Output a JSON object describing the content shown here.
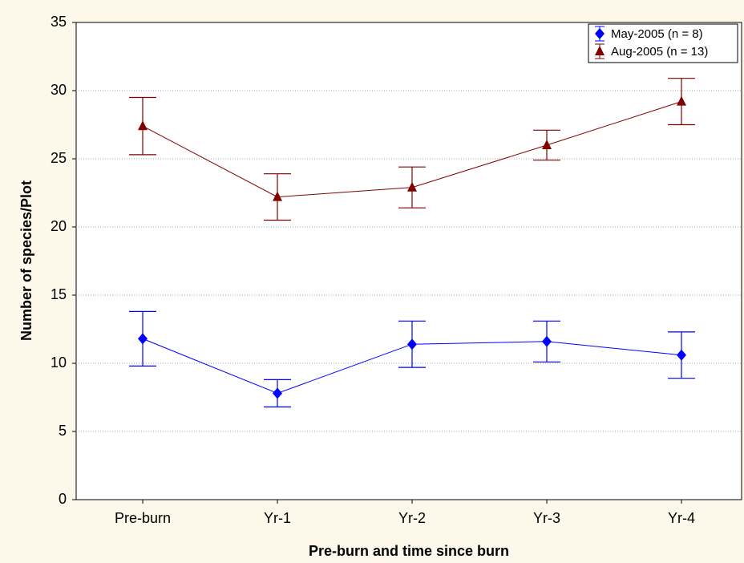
{
  "chart_data": {
    "type": "line",
    "x_label": "Pre-burn and time since burn",
    "y_label": "Number of species/Plot",
    "categories": [
      "Pre-burn",
      "Yr-1",
      "Yr-2",
      "Yr-3",
      "Yr-4"
    ],
    "series": [
      {
        "name": "May-2005 (n = 8)",
        "color": "#0000ff",
        "marker": "diamond",
        "values": [
          11.8,
          7.8,
          11.4,
          11.6,
          10.6
        ],
        "errors": [
          2.0,
          1.0,
          1.7,
          1.5,
          1.7
        ]
      },
      {
        "name": "Aug-2005 (n = 13)",
        "color": "#800000",
        "marker": "triangle",
        "values": [
          27.4,
          22.2,
          22.9,
          26.0,
          29.2
        ],
        "errors": [
          2.1,
          1.7,
          1.5,
          1.1,
          1.7
        ]
      }
    ],
    "ylim": [
      0,
      35
    ],
    "yticks": [
      0,
      5,
      10,
      15,
      20,
      25,
      30,
      35
    ],
    "grid": true,
    "legend": "upper right"
  }
}
